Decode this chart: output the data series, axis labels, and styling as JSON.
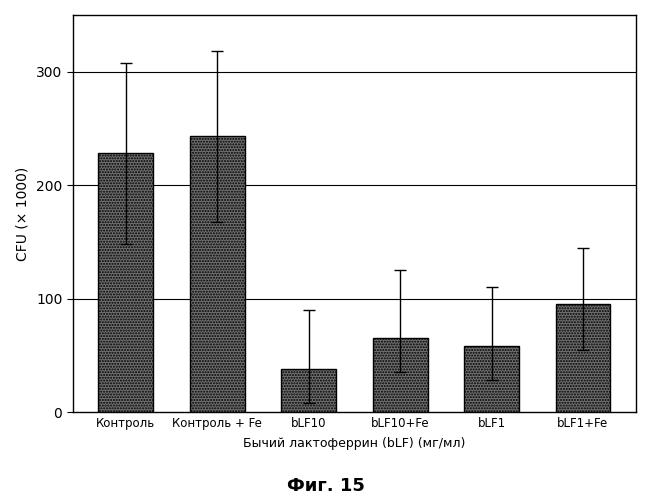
{
  "categories": [
    "Контроль",
    "Контроль + Fe",
    "bLF10",
    "bLF10+Fe",
    "bLF1",
    "bLF1+Fe"
  ],
  "values": [
    228,
    243,
    38,
    65,
    58,
    95
  ],
  "errors_upper": [
    80,
    75,
    52,
    60,
    52,
    50
  ],
  "errors_lower": [
    80,
    75,
    30,
    30,
    30,
    40
  ],
  "bar_color": "#707070",
  "bar_edge_color": "#000000",
  "ylabel": "CFU (× 1000)",
  "xlabel": "Бычий лактоферрин (bLF) (мг/мл)",
  "caption": "Фиг. 15",
  "ylim": [
    0,
    350
  ],
  "yticks": [
    0,
    100,
    200,
    300
  ],
  "background_color": "#ffffff",
  "plot_bg_color": "#ffffff",
  "grid_color": "#000000",
  "bar_width": 0.6,
  "hatch": "......"
}
